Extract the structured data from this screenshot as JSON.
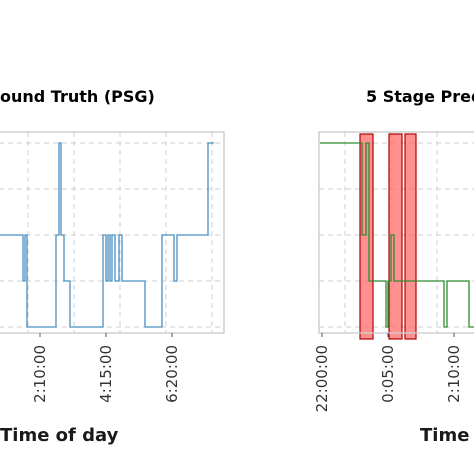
{
  "chart_data": [
    {
      "type": "line",
      "title": "ound Truth (PSG)",
      "xlabel": "Time of day",
      "ylabel": "",
      "x_ticks": [
        "2:10:00",
        "4:15:00",
        "6:20:00"
      ],
      "series": [
        {
          "color": "#4a90c2",
          "points": [
            [
              -60,
              1
            ],
            [
              23,
              1
            ],
            [
              23,
              2
            ],
            [
              25,
              2
            ],
            [
              25,
              1
            ],
            [
              27,
              1
            ],
            [
              27,
              3
            ],
            [
              56,
              3
            ],
            [
              56,
              1
            ],
            [
              59,
              1
            ],
            [
              59,
              0
            ],
            [
              61,
              0
            ],
            [
              61,
              1
            ],
            [
              64,
              1
            ],
            [
              64,
              2
            ],
            [
              70,
              2
            ],
            [
              70,
              3
            ],
            [
              103,
              3
            ],
            [
              103,
              1
            ],
            [
              106,
              1
            ],
            [
              106,
              2
            ],
            [
              108,
              2
            ],
            [
              108,
              1
            ],
            [
              110,
              1
            ],
            [
              110,
              2
            ],
            [
              112,
              2
            ],
            [
              112,
              1
            ],
            [
              115,
              1
            ],
            [
              115,
              2
            ],
            [
              119,
              2
            ],
            [
              119,
              1
            ],
            [
              122,
              1
            ],
            [
              122,
              2
            ],
            [
              145,
              2
            ],
            [
              145,
              3
            ],
            [
              162,
              3
            ],
            [
              162,
              1
            ],
            [
              174,
              1
            ],
            [
              174,
              2
            ],
            [
              177,
              2
            ],
            [
              177,
              1
            ],
            [
              208,
              1
            ],
            [
              208,
              0
            ],
            [
              214,
              0
            ]
          ]
        }
      ]
    },
    {
      "type": "line",
      "title": "5 Stage Pred",
      "xlabel": "Time",
      "ylabel": "",
      "x_ticks": [
        "22:00:00",
        "0:05:00",
        "2:10:00"
      ],
      "series": [
        {
          "color": "#2e8b2e",
          "points": [
            [
              320,
              0
            ],
            [
              362,
              0
            ],
            [
              362,
              1
            ],
            [
              366,
              1
            ],
            [
              366,
              0
            ],
            [
              369,
              0
            ],
            [
              369,
              2
            ],
            [
              386,
              2
            ],
            [
              386,
              3
            ],
            [
              388,
              3
            ],
            [
              388,
              2
            ],
            [
              391,
              2
            ],
            [
              391,
              1
            ],
            [
              394,
              1
            ],
            [
              394,
              2
            ],
            [
              444,
              2
            ],
            [
              444,
              3
            ],
            [
              447,
              3
            ],
            [
              447,
              2
            ],
            [
              469,
              2
            ],
            [
              469,
              3
            ],
            [
              474,
              3
            ]
          ]
        }
      ],
      "highlights": [
        {
          "start": 360,
          "end": 373
        },
        {
          "start": 389,
          "end": 402
        },
        {
          "start": 405,
          "end": 416
        }
      ],
      "highlight_color": "#ff6b6b"
    }
  ]
}
